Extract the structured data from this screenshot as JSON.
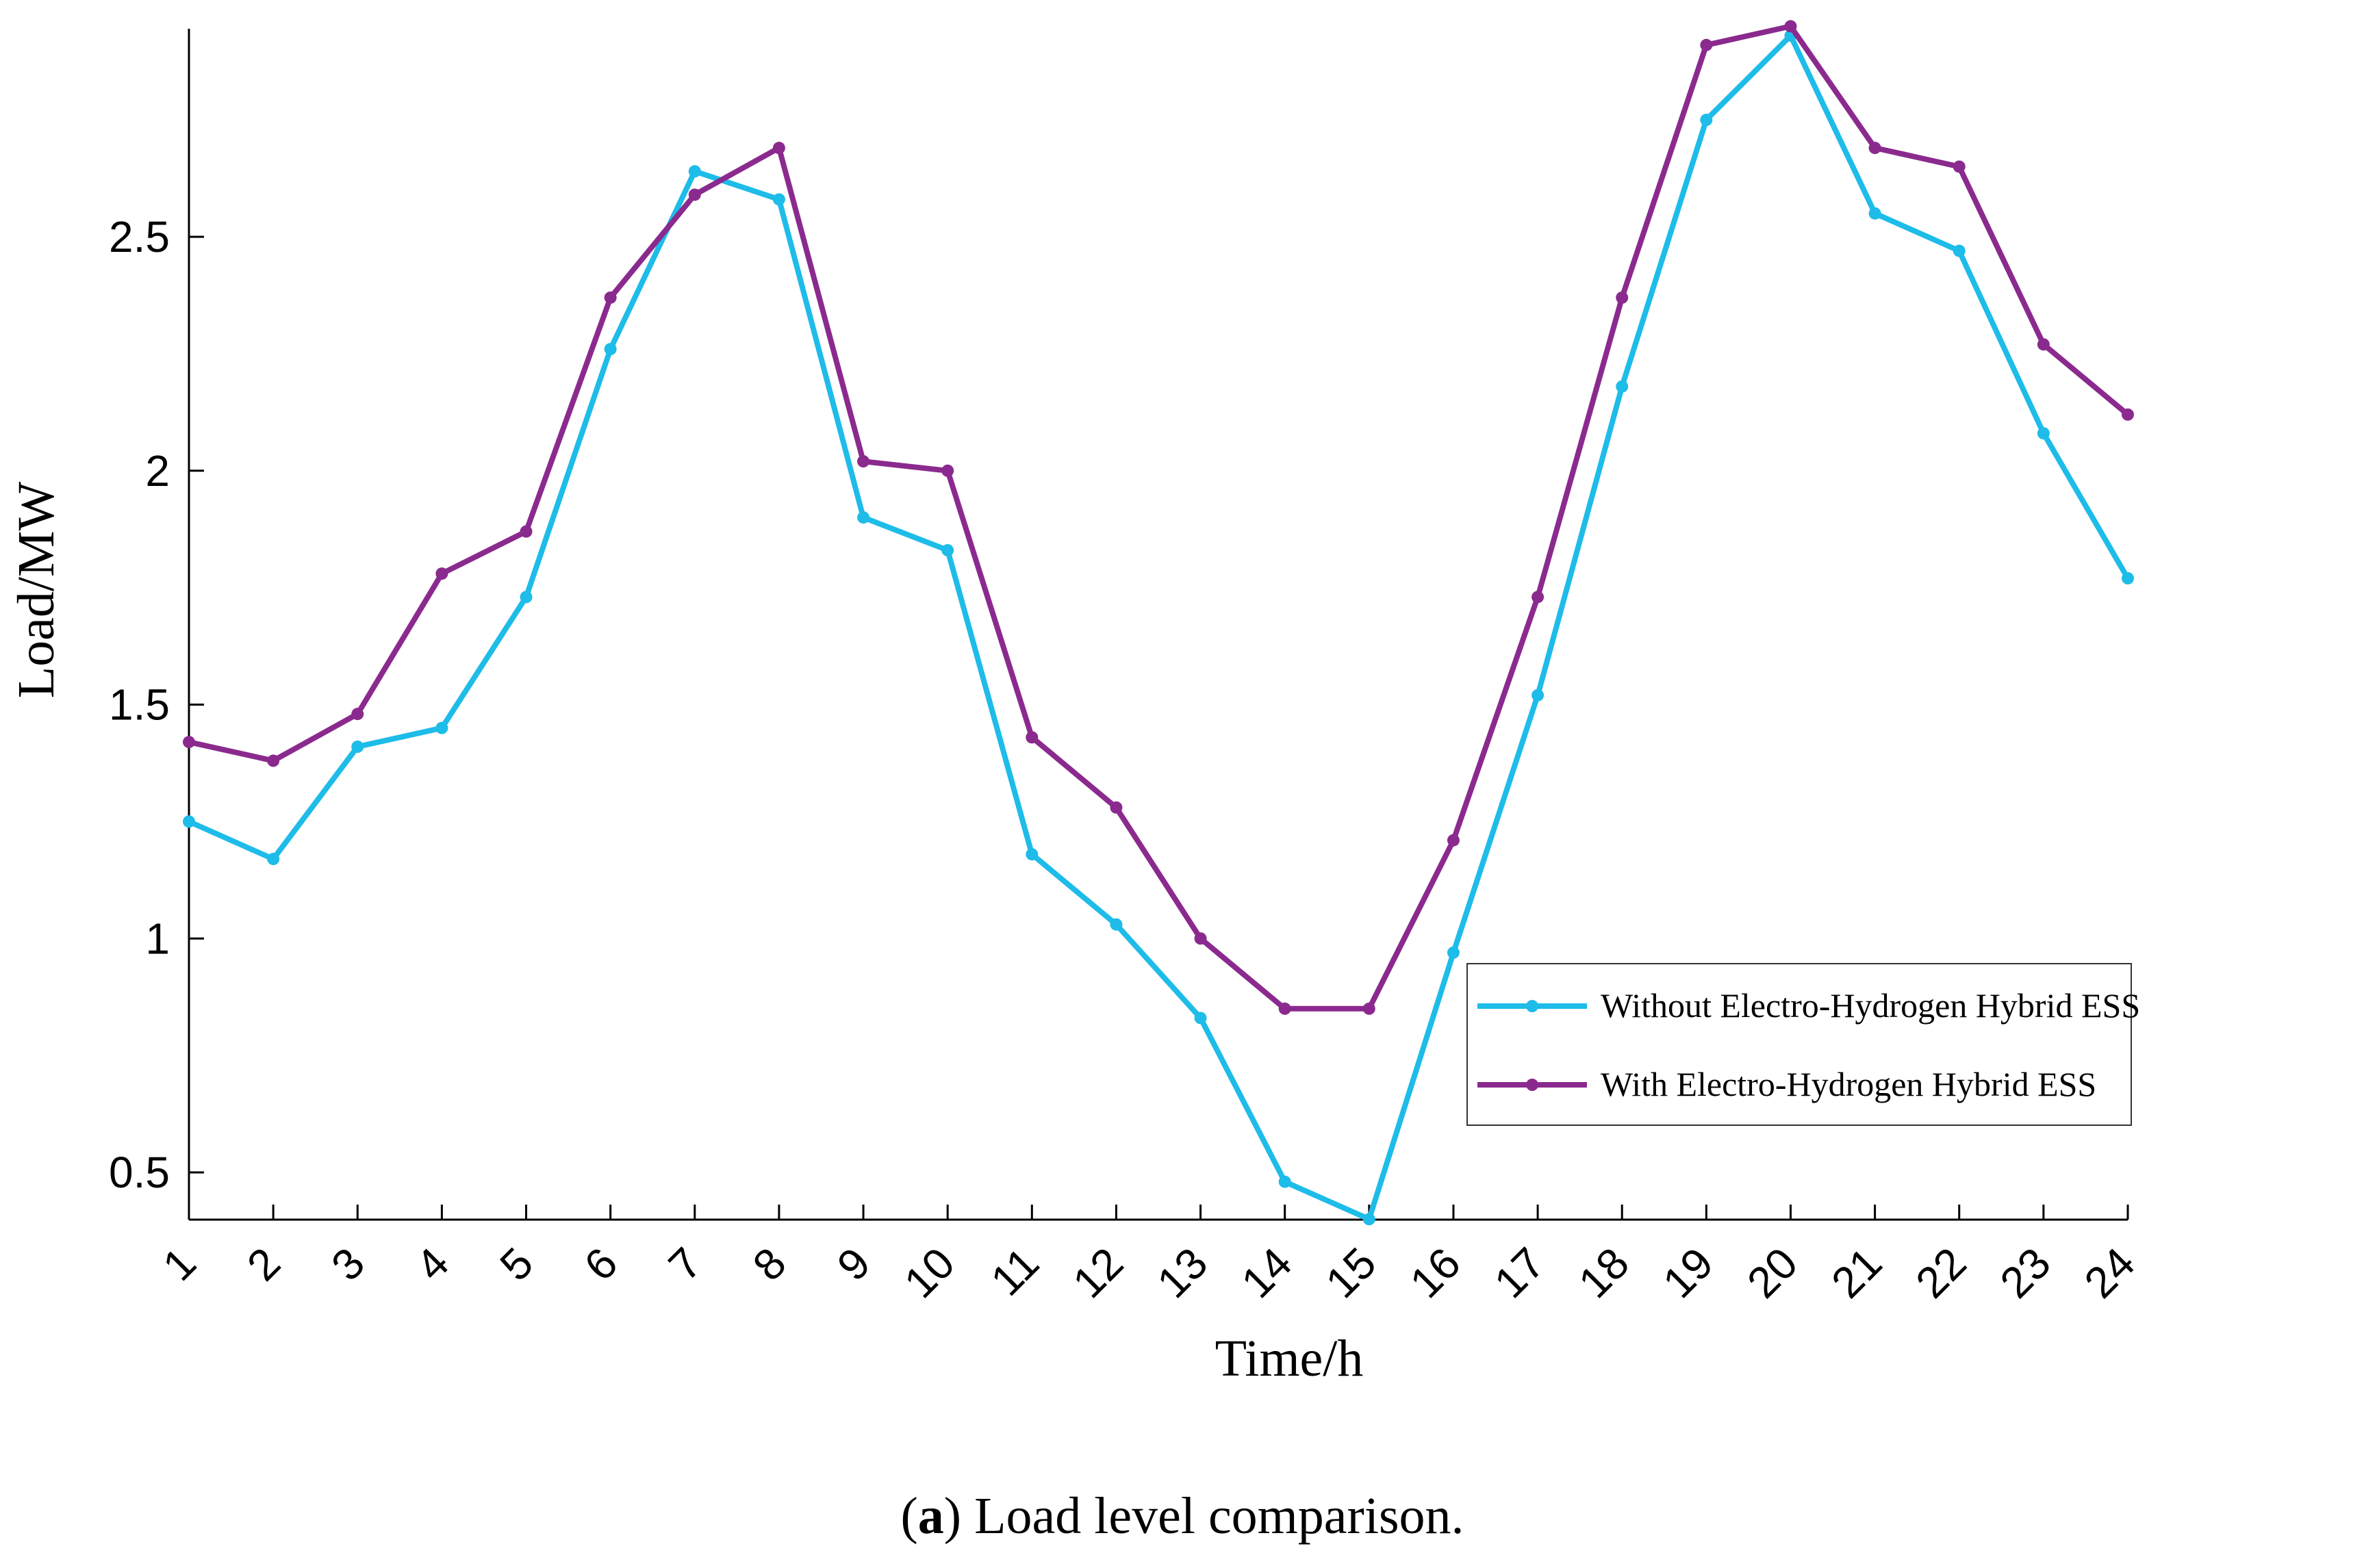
{
  "chart_data": {
    "type": "line",
    "title": "",
    "xlabel": "Time/h",
    "ylabel": "Load/MW",
    "x": [
      1,
      2,
      3,
      4,
      5,
      6,
      7,
      8,
      9,
      10,
      11,
      12,
      13,
      14,
      15,
      16,
      17,
      18,
      19,
      20,
      21,
      22,
      23,
      24
    ],
    "x_tick_labels": [
      "1",
      "2",
      "3",
      "4",
      "5",
      "6",
      "7",
      "8",
      "9",
      "10",
      "11",
      "12",
      "13",
      "14",
      "15",
      "16",
      "17",
      "18",
      "19",
      "20",
      "21",
      "22",
      "23",
      "24"
    ],
    "y_ticks": [
      0.5,
      1,
      1.5,
      2,
      2.5
    ],
    "y_tick_labels": [
      "0.5",
      "1",
      "1.5",
      "2",
      "2.5"
    ],
    "xlim": [
      1,
      24
    ],
    "ylim": [
      0.4,
      2.95
    ],
    "grid": false,
    "legend_position": "lower-right",
    "series": [
      {
        "name": "Without Electro-Hydrogen Hybrid ESS",
        "color": "#1EBCE8",
        "values": [
          1.25,
          1.17,
          1.41,
          1.45,
          1.73,
          2.26,
          2.64,
          2.58,
          1.9,
          1.83,
          1.18,
          1.03,
          0.83,
          0.48,
          0.4,
          0.97,
          1.52,
          2.18,
          2.75,
          2.93,
          2.55,
          2.47,
          2.08,
          1.77
        ]
      },
      {
        "name": "With Electro-Hydrogen Hybrid ESS",
        "color": "#8B2A8E",
        "values": [
          1.42,
          1.38,
          1.48,
          1.78,
          1.87,
          2.37,
          2.59,
          2.69,
          2.02,
          2.0,
          1.43,
          1.28,
          1.0,
          0.85,
          0.85,
          1.21,
          1.73,
          2.37,
          2.91,
          2.95,
          2.69,
          2.65,
          2.27,
          2.12
        ]
      }
    ]
  },
  "caption": {
    "open_paren": "(",
    "letter": "a",
    "rest": ") Load level comparison."
  }
}
